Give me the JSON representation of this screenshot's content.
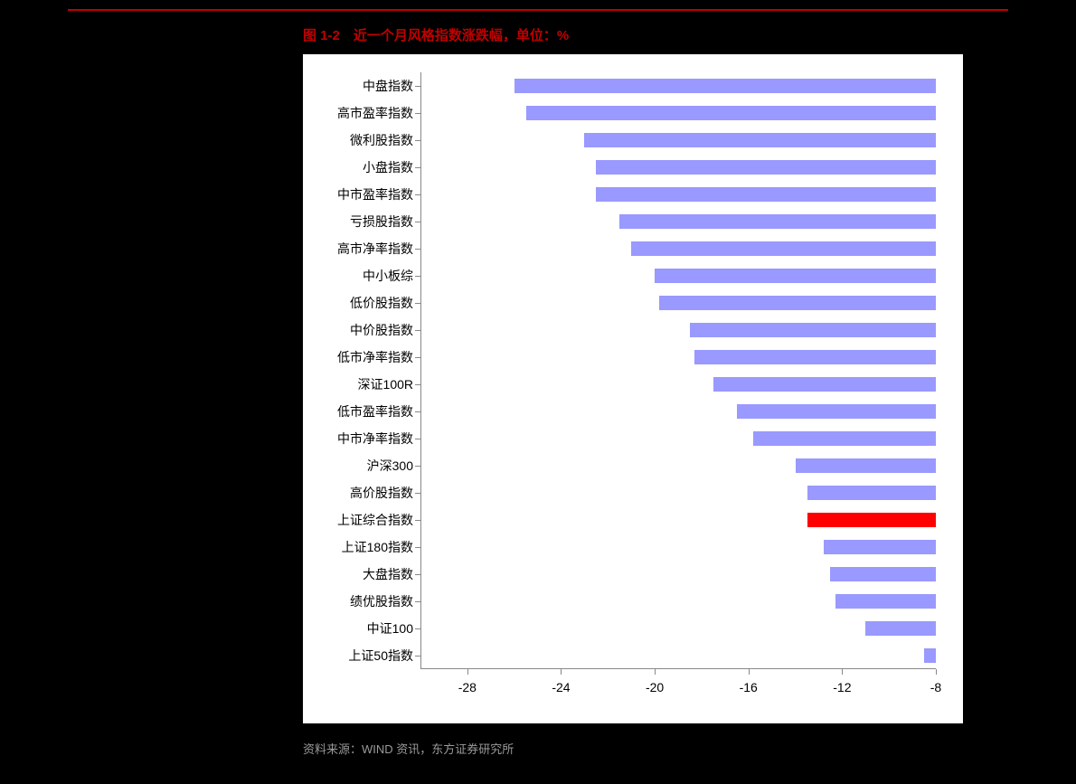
{
  "title": "图 1-2　近一个月风格指数涨跌幅，单位：%",
  "source": "资料来源：WIND 资讯，东方证券研究所",
  "chart": {
    "type": "bar-horizontal",
    "background_color": "#ffffff",
    "page_background": "#000000",
    "title_color": "#c00000",
    "source_color": "#9a9a9a",
    "axis_color": "#888888",
    "label_fontsize": 14,
    "title_fontsize": 15,
    "bar_color_default": "#9999ff",
    "bar_color_highlight": "#ff0000",
    "xmin": -30,
    "xmax": -8,
    "xticks": [
      -28,
      -24,
      -20,
      -16,
      -12,
      -8
    ],
    "categories": [
      {
        "label": "中盘指数",
        "value": -26.0,
        "highlight": false
      },
      {
        "label": "高市盈率指数",
        "value": -25.5,
        "highlight": false
      },
      {
        "label": "微利股指数",
        "value": -23.0,
        "highlight": false
      },
      {
        "label": "小盘指数",
        "value": -22.5,
        "highlight": false
      },
      {
        "label": "中市盈率指数",
        "value": -22.5,
        "highlight": false
      },
      {
        "label": "亏损股指数",
        "value": -21.5,
        "highlight": false
      },
      {
        "label": "高市净率指数",
        "value": -21.0,
        "highlight": false
      },
      {
        "label": "中小板综",
        "value": -20.0,
        "highlight": false
      },
      {
        "label": "低价股指数",
        "value": -19.8,
        "highlight": false
      },
      {
        "label": "中价股指数",
        "value": -18.5,
        "highlight": false
      },
      {
        "label": "低市净率指数",
        "value": -18.3,
        "highlight": false
      },
      {
        "label": "深证100R",
        "value": -17.5,
        "highlight": false
      },
      {
        "label": "低市盈率指数",
        "value": -16.5,
        "highlight": false
      },
      {
        "label": "中市净率指数",
        "value": -15.8,
        "highlight": false
      },
      {
        "label": "沪深300",
        "value": -14.0,
        "highlight": false
      },
      {
        "label": "高价股指数",
        "value": -13.5,
        "highlight": false
      },
      {
        "label": "上证综合指数",
        "value": -13.5,
        "highlight": true
      },
      {
        "label": "上证180指数",
        "value": -12.8,
        "highlight": false
      },
      {
        "label": "大盘指数",
        "value": -12.5,
        "highlight": false
      },
      {
        "label": "绩优股指数",
        "value": -12.3,
        "highlight": false
      },
      {
        "label": "中证100",
        "value": -11.0,
        "highlight": false
      },
      {
        "label": "上证50指数",
        "value": -8.5,
        "highlight": false
      }
    ]
  }
}
